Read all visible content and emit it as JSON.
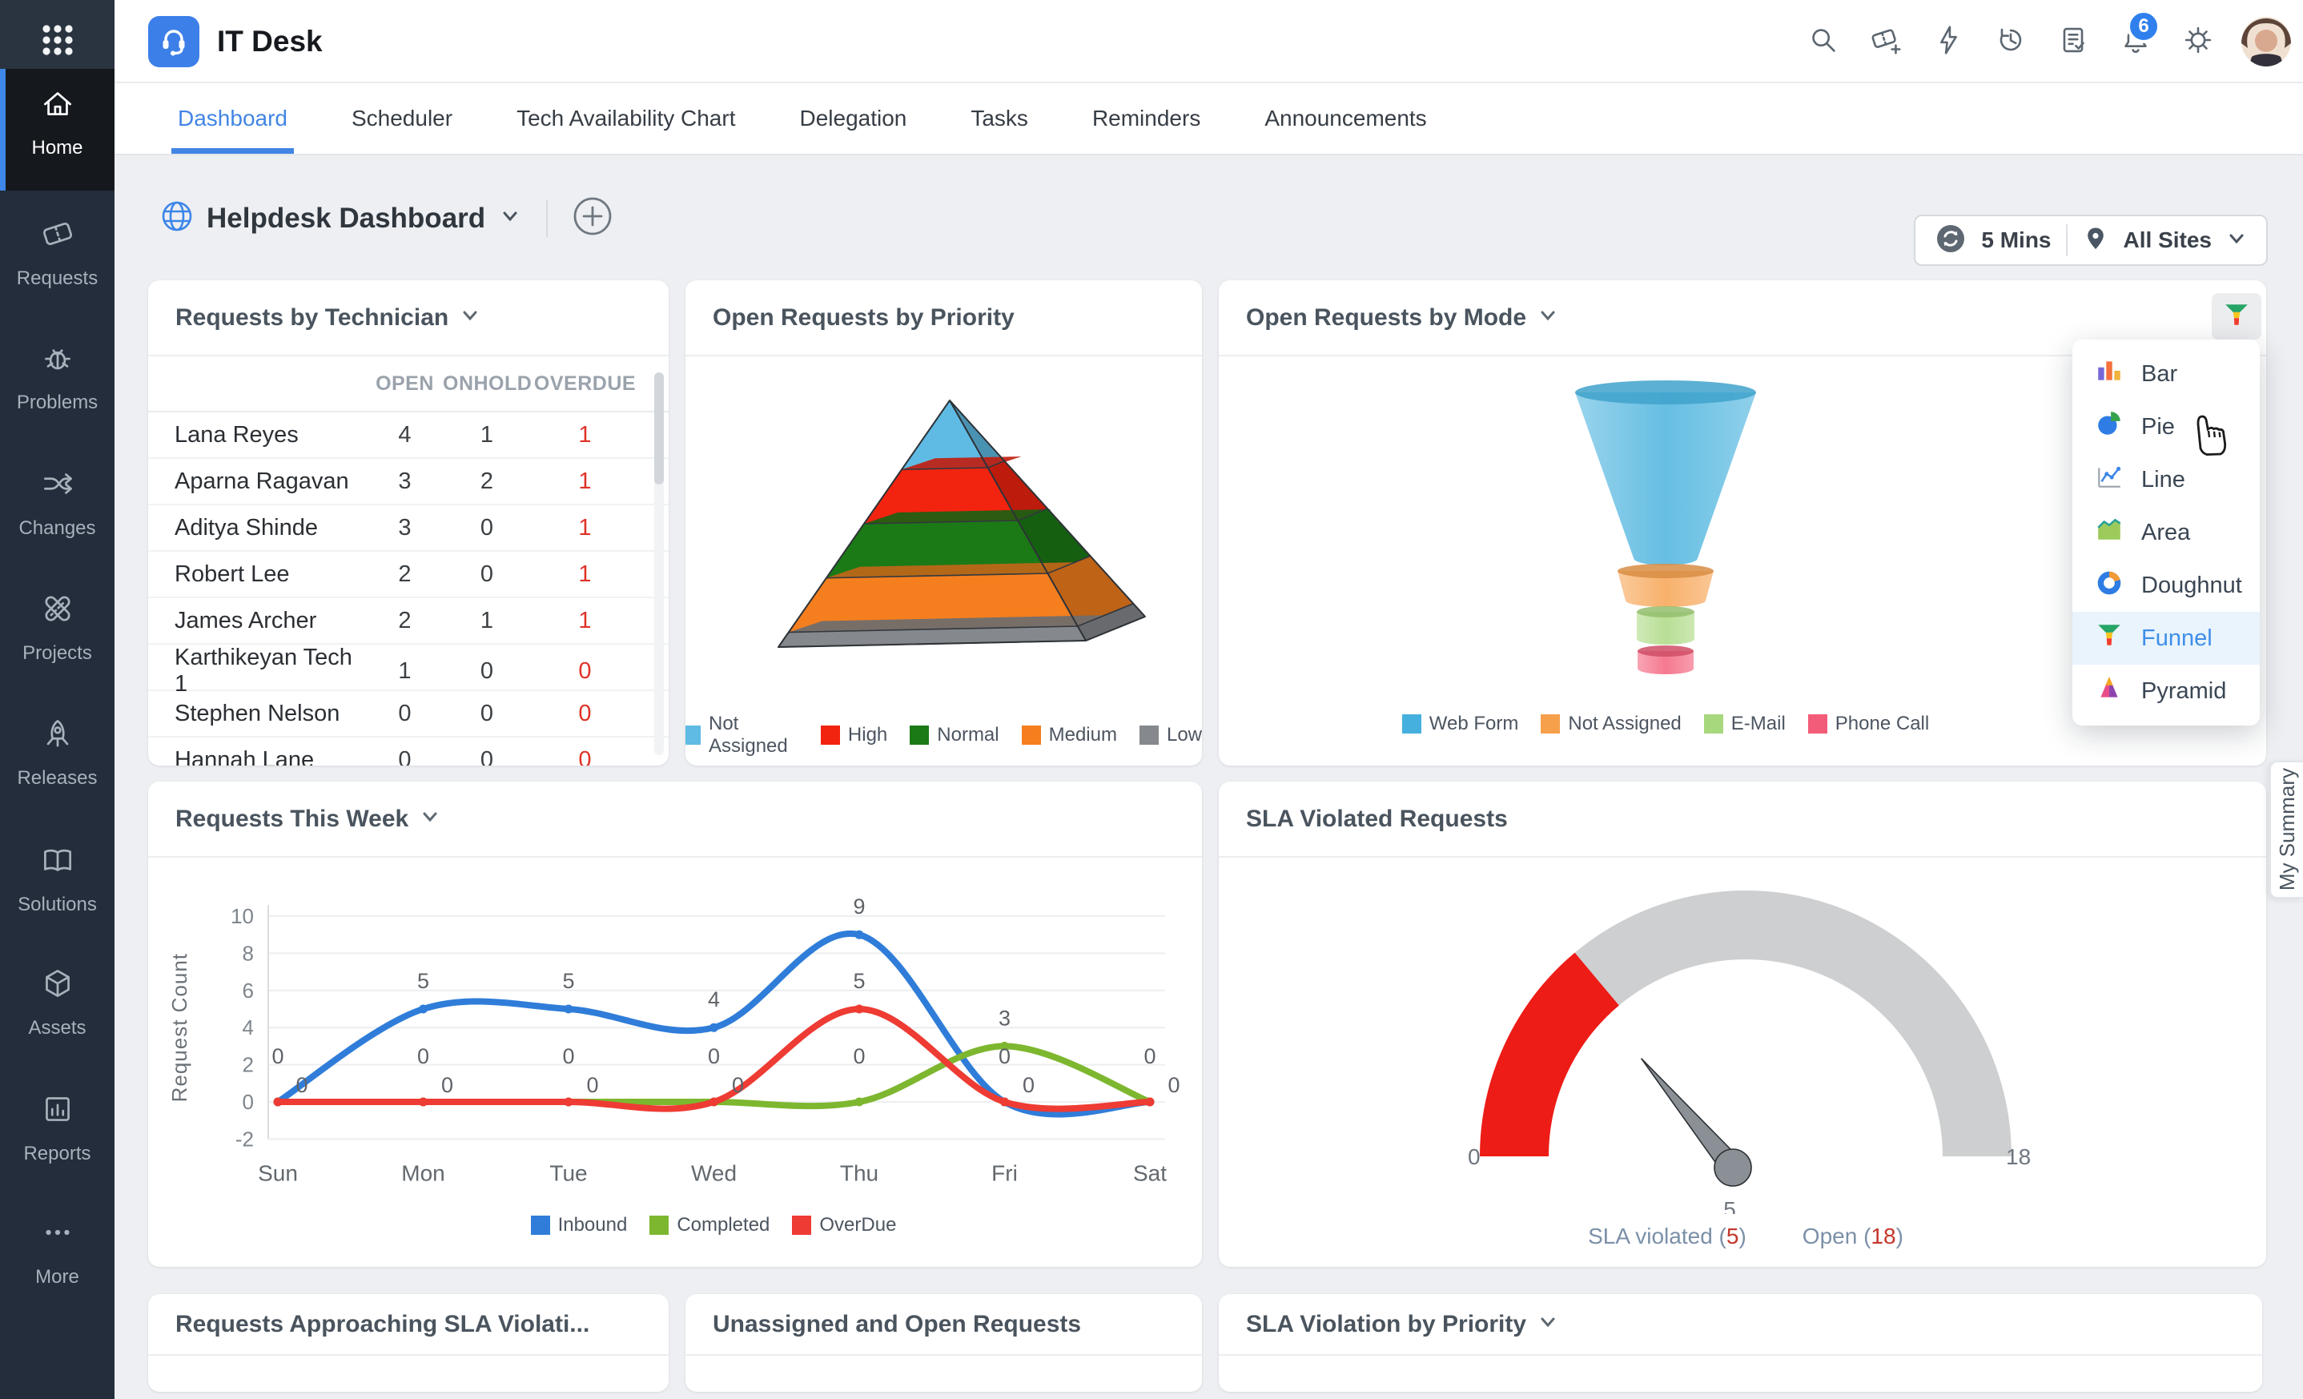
{
  "colors": {
    "accent": "#3E86E8",
    "sidebar_bg": "#232D3B",
    "badge_blue": "#2F80ED",
    "overdue_red": "#DF3226"
  },
  "topbar": {
    "app_title": "IT Desk",
    "notification_count": "6",
    "icons": [
      "search-icon",
      "add-request-icon",
      "quick-actions-icon",
      "history-icon",
      "feedback-icon",
      "notifications-icon",
      "settings-icon"
    ]
  },
  "sidebar": {
    "items": [
      {
        "label": "Home",
        "icon": "home",
        "active": true
      },
      {
        "label": "Requests",
        "icon": "ticket",
        "active": false
      },
      {
        "label": "Problems",
        "icon": "bug",
        "active": false
      },
      {
        "label": "Changes",
        "icon": "shuffle",
        "active": false
      },
      {
        "label": "Projects",
        "icon": "projects",
        "active": false
      },
      {
        "label": "Releases",
        "icon": "rocket",
        "active": false
      },
      {
        "label": "Solutions",
        "icon": "book",
        "active": false
      },
      {
        "label": "Assets",
        "icon": "cube",
        "active": false
      },
      {
        "label": "Reports",
        "icon": "report",
        "active": false
      },
      {
        "label": "More",
        "icon": "dots",
        "active": false
      }
    ]
  },
  "tabs": [
    "Dashboard",
    "Scheduler",
    "Tech Availability Chart",
    "Delegation",
    "Tasks",
    "Reminders",
    "Announcements"
  ],
  "active_tab": "Dashboard",
  "dash_header": {
    "title": "Helpdesk Dashboard",
    "refresh_interval": "5 Mins",
    "site_filter": "All Sites"
  },
  "cards": {
    "technician": {
      "title": "Requests by Technician",
      "columns": [
        "OPEN",
        "ONHOLD",
        "OVERDUE"
      ],
      "rows": [
        [
          "Lana Reyes",
          "4",
          "1",
          "1"
        ],
        [
          "Aparna Ragavan",
          "3",
          "2",
          "1"
        ],
        [
          "Aditya Shinde",
          "3",
          "0",
          "1"
        ],
        [
          "Robert Lee",
          "2",
          "0",
          "1"
        ],
        [
          "James Archer",
          "2",
          "1",
          "1"
        ],
        [
          "Karthikeyan Tech 1",
          "1",
          "0",
          "0"
        ],
        [
          "Stephen Nelson",
          "0",
          "0",
          "0"
        ],
        [
          "Hannah Lane",
          "0",
          "0",
          "0"
        ]
      ]
    },
    "priority": {
      "title": "Open Requests by Priority",
      "chart_data": {
        "type": "pyramid",
        "categories": [
          "Not Assigned",
          "High",
          "Normal",
          "Medium",
          "Low"
        ],
        "colors": [
          "#5FBBE4",
          "#F2230F",
          "#1B7A16",
          "#F57F1E",
          "#85888C"
        ],
        "height_fractions_est": [
          0.28,
          0.22,
          0.22,
          0.22,
          0.06
        ],
        "values_labeled": false,
        "legend_position": "bottom"
      }
    },
    "mode": {
      "title": "Open Requests by Mode",
      "chart_data": {
        "type": "funnel",
        "categories": [
          "Web Form",
          "Not Assigned",
          "E-Mail",
          "Phone Call"
        ],
        "colors": [
          "#45B0DD",
          "#F6A04C",
          "#A8D87E",
          "#F35C78"
        ],
        "size_fractions_est": [
          0.78,
          0.1,
          0.07,
          0.05
        ],
        "values_labeled": false,
        "legend_position": "bottom"
      },
      "chart_type_menu": {
        "items": [
          "Bar",
          "Pie",
          "Line",
          "Area",
          "Doughnut",
          "Funnel",
          "Pyramid"
        ],
        "active": "Funnel"
      }
    },
    "week": {
      "title": "Requests This Week",
      "chart_data": {
        "type": "line",
        "categories": [
          "Sun",
          "Mon",
          "Tue",
          "Wed",
          "Thu",
          "Fri",
          "Sat"
        ],
        "series": [
          {
            "name": "Inbound",
            "color": "#2F7DD9",
            "values": [
              0,
              5,
              5,
              4,
              9,
              0,
              0
            ]
          },
          {
            "name": "Completed",
            "color": "#7DB72F",
            "values": [
              0,
              0,
              0,
              0,
              0,
              3,
              0
            ]
          },
          {
            "name": "OverDue",
            "color": "#EE3B33",
            "values": [
              0,
              0,
              0,
              0,
              5,
              0,
              0
            ]
          }
        ],
        "ylabel": "Request Count",
        "yticks": [
          -2,
          0,
          2,
          4,
          6,
          8,
          10
        ],
        "ylim": [
          -2,
          10
        ],
        "grid": true,
        "legend_position": "bottom"
      }
    },
    "sla": {
      "title": "SLA Violated Requests",
      "chart_data": {
        "type": "gauge",
        "min": 0,
        "max": 18,
        "value": 5,
        "red_zone": [
          0,
          5
        ],
        "tick_labels": [
          "0",
          "18"
        ],
        "value_label": "5"
      },
      "footer": [
        {
          "label": "SLA violated",
          "value": "5"
        },
        {
          "label": "Open",
          "value": "18"
        }
      ]
    },
    "approaching": {
      "title": "Requests Approaching SLA Violati..."
    },
    "unassigned": {
      "title": "Unassigned and Open Requests"
    },
    "sla_priority": {
      "title": "SLA Violation by Priority"
    }
  },
  "my_summary_tab": "My Summary"
}
